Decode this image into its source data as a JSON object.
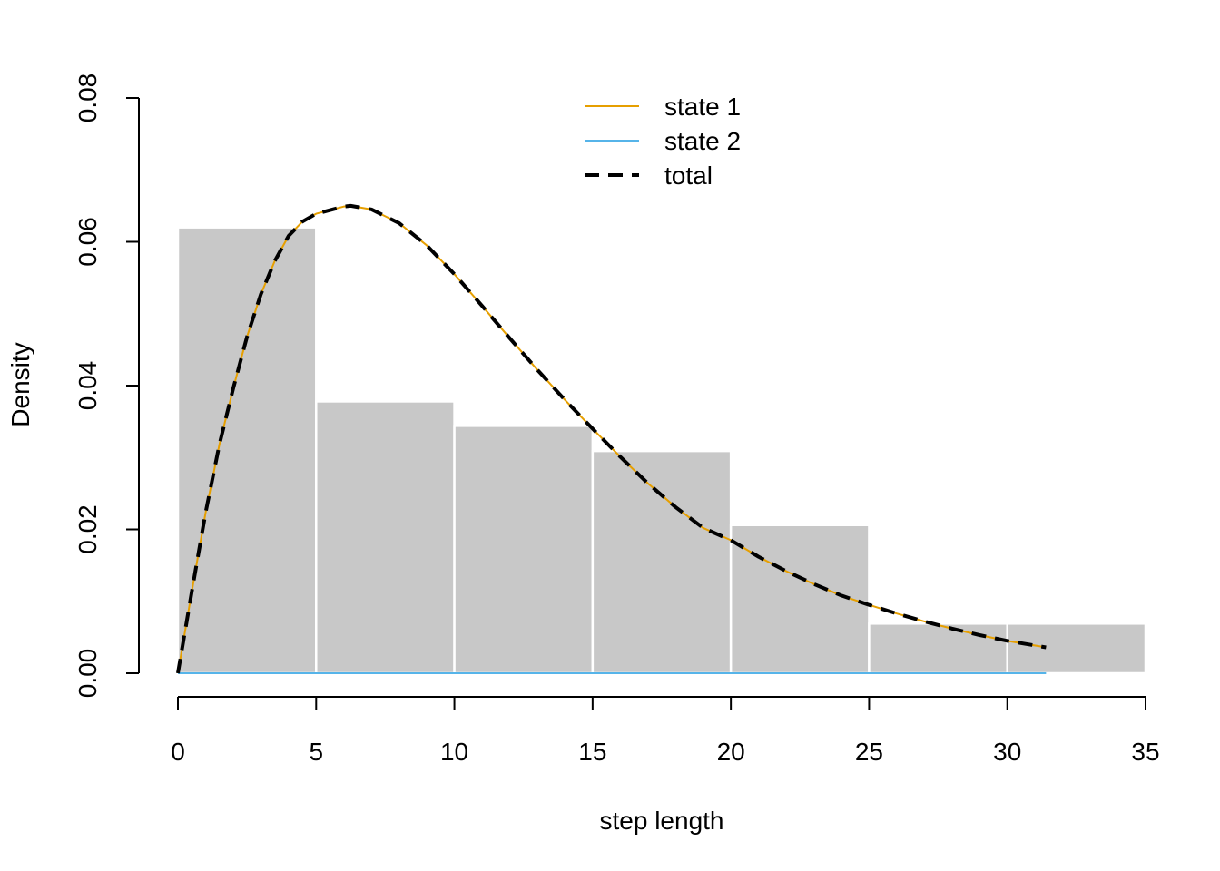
{
  "chart_data": {
    "type": "bar",
    "title": "",
    "xlabel": "step length",
    "ylabel": "Density",
    "xlim": [
      0,
      35
    ],
    "ylim": [
      0,
      0.08
    ],
    "x_ticks": [
      0,
      5,
      10,
      15,
      20,
      25,
      30,
      35
    ],
    "x_tick_labels": [
      "0",
      "5",
      "10",
      "15",
      "20",
      "25",
      "30",
      "35"
    ],
    "y_ticks": [
      0,
      0.02,
      0.04,
      0.06,
      0.08
    ],
    "y_tick_labels": [
      "0.00",
      "0.02",
      "0.04",
      "0.06",
      "0.08"
    ],
    "grid": false,
    "legend_position": "top-center",
    "histogram": {
      "bin_edges": [
        0,
        5,
        10,
        15,
        20,
        25,
        30,
        35
      ],
      "densities": [
        0.062,
        0.0378,
        0.0344,
        0.0309,
        0.0206,
        0.0069,
        0.0069
      ],
      "fill_color": "#c8c8c8",
      "border_color": "#ffffff"
    },
    "series": [
      {
        "name": "state 1",
        "color": "#e69f00",
        "style": "solid",
        "x": [
          0,
          0.5,
          1,
          1.5,
          2,
          2.5,
          3,
          3.5,
          4,
          4.5,
          5,
          6,
          6.25,
          7,
          8,
          9,
          10,
          11,
          12,
          13,
          14,
          15,
          16,
          17,
          18,
          19,
          20,
          21,
          22,
          23,
          24,
          25,
          26,
          27,
          28,
          29,
          30,
          31.4
        ],
        "y": [
          0,
          0.0113,
          0.0223,
          0.0318,
          0.0396,
          0.0468,
          0.0527,
          0.0573,
          0.0608,
          0.0628,
          0.0639,
          0.0649,
          0.065,
          0.0645,
          0.0626,
          0.0595,
          0.0555,
          0.0511,
          0.0466,
          0.0422,
          0.038,
          0.034,
          0.0301,
          0.0264,
          0.0231,
          0.0202,
          0.0185,
          0.0162,
          0.0142,
          0.0124,
          0.0108,
          0.0095,
          0.0083,
          0.0072,
          0.0062,
          0.0053,
          0.0045,
          0.0036
        ]
      },
      {
        "name": "state 2",
        "color": "#56b4e9",
        "style": "solid",
        "x": [
          0,
          31.4
        ],
        "y": [
          0,
          0
        ]
      },
      {
        "name": "total",
        "color": "#000000",
        "style": "dashed",
        "x": [
          0,
          0.5,
          1,
          1.5,
          2,
          2.5,
          3,
          3.5,
          4,
          4.5,
          5,
          6,
          6.25,
          7,
          8,
          9,
          10,
          11,
          12,
          13,
          14,
          15,
          16,
          17,
          18,
          19,
          20,
          21,
          22,
          23,
          24,
          25,
          26,
          27,
          28,
          29,
          30,
          31.4
        ],
        "y": [
          0,
          0.0113,
          0.0223,
          0.0318,
          0.0396,
          0.0468,
          0.0527,
          0.0573,
          0.0608,
          0.0628,
          0.0639,
          0.0649,
          0.065,
          0.0645,
          0.0626,
          0.0595,
          0.0555,
          0.0511,
          0.0466,
          0.0422,
          0.038,
          0.034,
          0.0301,
          0.0264,
          0.0231,
          0.0202,
          0.0185,
          0.0162,
          0.0142,
          0.0124,
          0.0108,
          0.0095,
          0.0083,
          0.0072,
          0.0062,
          0.0053,
          0.0045,
          0.0036
        ]
      }
    ]
  }
}
